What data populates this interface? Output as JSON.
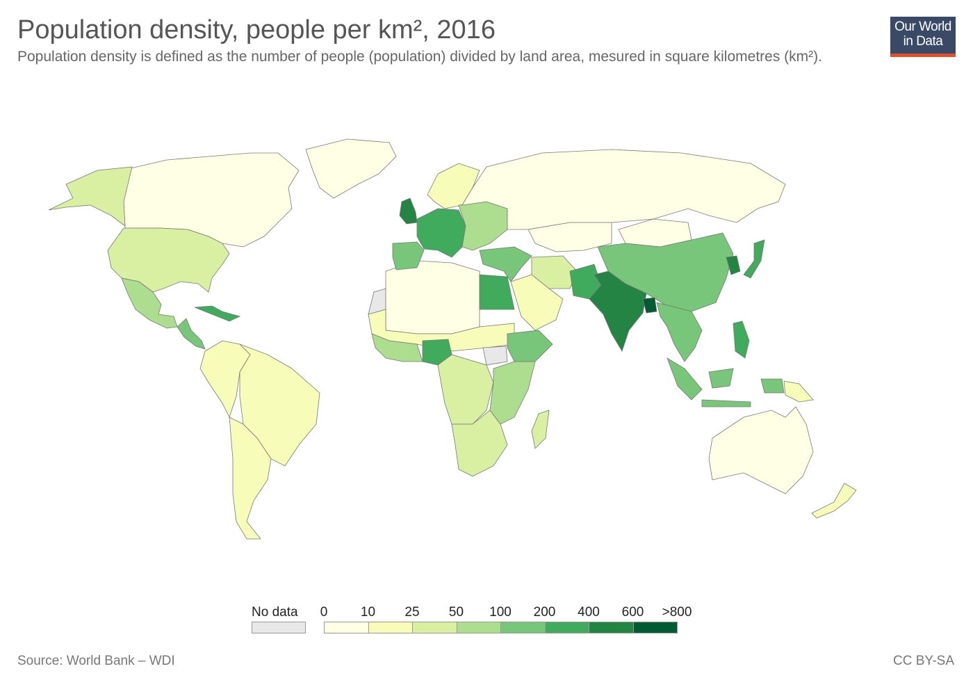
{
  "title": "Population density, people per km², 2016",
  "subtitle": "Population density is defined as the number of people (population) divided by land area, mesured in square kilometres (km²).",
  "logo": {
    "line1": "Our World",
    "line2": "in Data"
  },
  "legend": {
    "no_data_label": "No data",
    "no_data_color": "#e8e8e8",
    "breaks": [
      "0",
      "10",
      "25",
      "50",
      "100",
      "200",
      "400",
      "600",
      ">800"
    ],
    "colors": [
      "#ffffe5",
      "#f7fcb9",
      "#d9f0a3",
      "#addd8e",
      "#78c679",
      "#41ab5d",
      "#238443",
      "#005a32"
    ]
  },
  "regions": [
    {
      "name": "Canada",
      "color": "#ffffe5"
    },
    {
      "name": "Greenland",
      "color": "#ffffe5"
    },
    {
      "name": "Alaska",
      "color": "#d9f0a3"
    },
    {
      "name": "United States",
      "color": "#d9f0a3"
    },
    {
      "name": "Mexico",
      "color": "#addd8e"
    },
    {
      "name": "Central America",
      "color": "#78c679"
    },
    {
      "name": "Caribbean",
      "color": "#41ab5d"
    },
    {
      "name": "Brazil",
      "color": "#f7fcb9"
    },
    {
      "name": "Andean South America",
      "color": "#f7fcb9"
    },
    {
      "name": "Southern Cone",
      "color": "#f7fcb9"
    },
    {
      "name": "Russia",
      "color": "#ffffe5"
    },
    {
      "name": "Nordics",
      "color": "#f7fcb9"
    },
    {
      "name": "Western Europe",
      "color": "#41ab5d"
    },
    {
      "name": "United Kingdom",
      "color": "#238443"
    },
    {
      "name": "Iberia",
      "color": "#78c679"
    },
    {
      "name": "Eastern Europe",
      "color": "#addd8e"
    },
    {
      "name": "Turkey and Levant",
      "color": "#78c679"
    },
    {
      "name": "Kazakhstan",
      "color": "#ffffe5"
    },
    {
      "name": "Mongolia",
      "color": "#ffffe5"
    },
    {
      "name": "China",
      "color": "#78c679"
    },
    {
      "name": "India",
      "color": "#238443"
    },
    {
      "name": "Bangladesh",
      "color": "#005a32"
    },
    {
      "name": "Pakistan",
      "color": "#41ab5d"
    },
    {
      "name": "Iran",
      "color": "#d9f0a3"
    },
    {
      "name": "Arabian Peninsula",
      "color": "#f7fcb9"
    },
    {
      "name": "Japan",
      "color": "#41ab5d"
    },
    {
      "name": "Korea",
      "color": "#238443"
    },
    {
      "name": "Southeast Asia",
      "color": "#78c679"
    },
    {
      "name": "Indonesia",
      "color": "#78c679"
    },
    {
      "name": "Philippines",
      "color": "#41ab5d"
    },
    {
      "name": "Papua New Guinea",
      "color": "#f7fcb9"
    },
    {
      "name": "Australia",
      "color": "#ffffe5"
    },
    {
      "name": "New Zealand",
      "color": "#f7fcb9"
    },
    {
      "name": "North Africa Sahara",
      "color": "#ffffe5"
    },
    {
      "name": "Sahel",
      "color": "#f7fcb9"
    },
    {
      "name": "West Africa",
      "color": "#addd8e"
    },
    {
      "name": "Nigeria",
      "color": "#41ab5d"
    },
    {
      "name": "Egypt",
      "color": "#addd8e"
    },
    {
      "name": "Ethiopia",
      "color": "#78c679"
    },
    {
      "name": "Central Africa",
      "color": "#d9f0a3"
    },
    {
      "name": "East Africa",
      "color": "#addd8e"
    },
    {
      "name": "Southern Africa",
      "color": "#d9f0a3"
    },
    {
      "name": "Madagascar",
      "color": "#d9f0a3"
    },
    {
      "name": "Western Sahara",
      "color": "#e8e8e8"
    },
    {
      "name": "South Sudan",
      "color": "#e8e8e8"
    }
  ],
  "source": "Source: World Bank – WDI",
  "license": "CC BY-SA"
}
